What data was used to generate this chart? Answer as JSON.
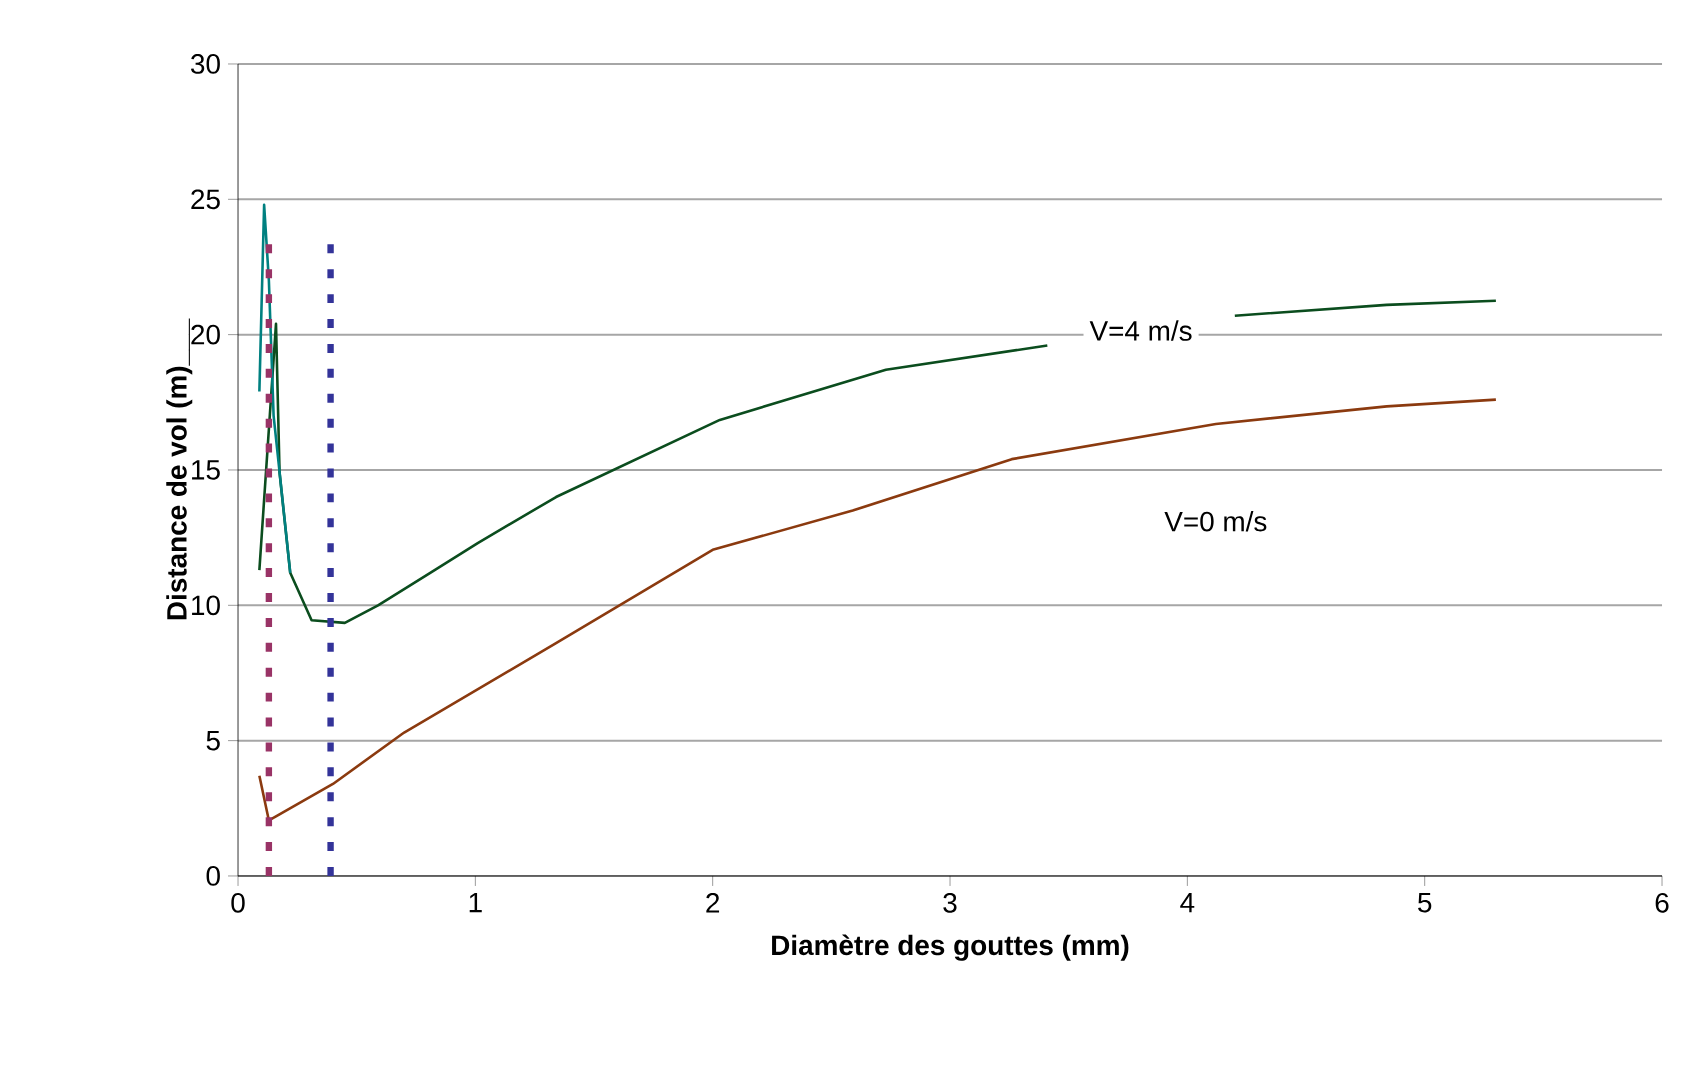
{
  "chart_data": {
    "type": "line",
    "xlabel": "Diamètre des gouttes (mm)",
    "ylabel": "Distance de vol (m)___",
    "xlim": [
      0,
      6
    ],
    "ylim": [
      0,
      30
    ],
    "xticks": [
      0,
      1,
      2,
      3,
      4,
      5,
      6
    ],
    "yticks": [
      0,
      5,
      10,
      15,
      20,
      25,
      30
    ],
    "grid": "y",
    "marker": "none",
    "line_style": "solid",
    "series": [
      {
        "name": "V=4 m/s",
        "color": "#0b4d1e",
        "x": [
          0.09,
          0.16,
          0.175,
          0.22,
          0.31,
          0.45,
          0.59,
          0.81,
          1.01,
          1.34,
          2.03,
          2.73,
          3.41,
          3.8,
          4.2,
          4.84,
          5.3
        ],
        "values": [
          11.3,
          20.4,
          14.9,
          11.2,
          9.45,
          9.35,
          10.0,
          11.2,
          12.3,
          14.0,
          16.85,
          18.7,
          19.6,
          null,
          20.7,
          21.1,
          21.25
        ]
      },
      {
        "color": "#008080",
        "x": [
          0.09,
          0.11,
          0.13,
          0.15,
          0.22
        ],
        "values": [
          17.9,
          24.8,
          22.0,
          17.0,
          11.2
        ]
      },
      {
        "name": "V=0 m/s",
        "color": "#8b3a0f",
        "x": [
          0.09,
          0.13,
          0.16,
          0.4,
          0.7,
          1.34,
          2.0,
          2.59,
          3.26,
          4.12,
          4.84,
          5.3
        ],
        "values": [
          3.7,
          2.05,
          2.2,
          3.4,
          5.3,
          8.6,
          12.05,
          13.5,
          15.4,
          16.7,
          17.35,
          17.6
        ]
      },
      {
        "color": "#993366",
        "line_style": "dotted",
        "x": [
          0.13,
          0.13
        ],
        "values": [
          0,
          23.5
        ]
      },
      {
        "color": "#333399",
        "line_style": "dotted",
        "x": [
          0.39,
          0.39
        ],
        "values": [
          0,
          23.5
        ]
      }
    ]
  }
}
